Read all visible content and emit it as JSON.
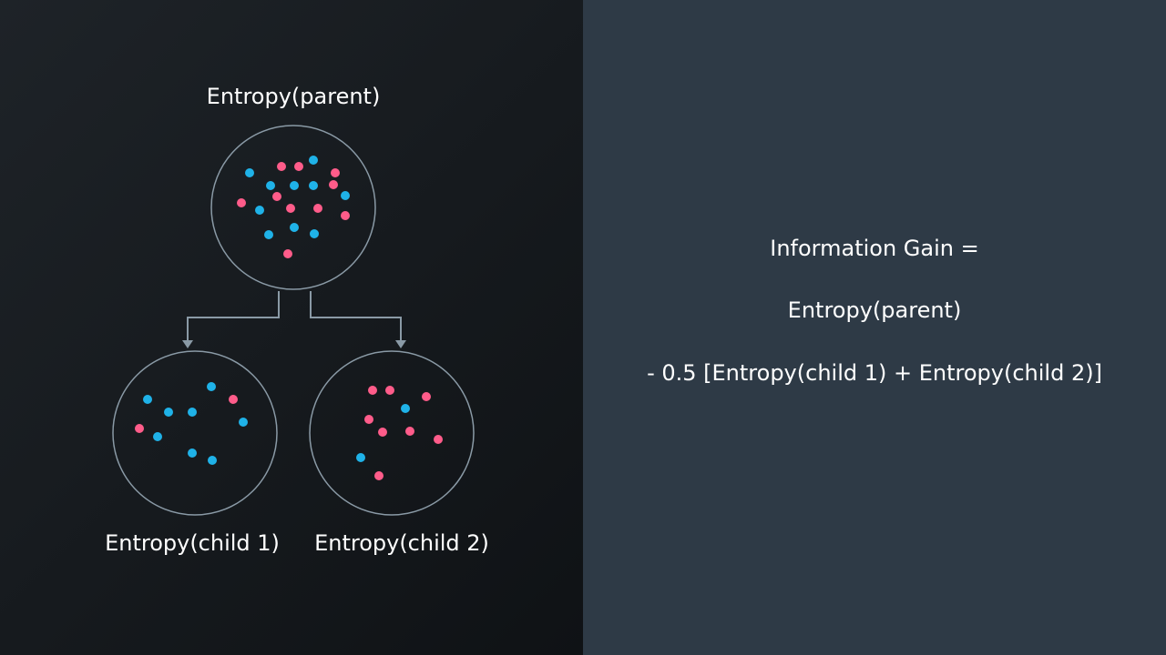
{
  "diagram": {
    "parent_label": "Entropy(parent)",
    "child1_label": "Entropy(child 1)",
    "child2_label": "Entropy(child 2)",
    "colors": {
      "pink": "#ff5c8a",
      "blue": "#1fb2e8",
      "circle_stroke": "#8a9aa6",
      "arrow": "#8a9aa6"
    }
  },
  "formula": {
    "line1": "Information Gain =",
    "line2": "Entropy(parent)",
    "line3": "- 0.5 [Entropy(child 1) + Entropy(child 2)]"
  }
}
